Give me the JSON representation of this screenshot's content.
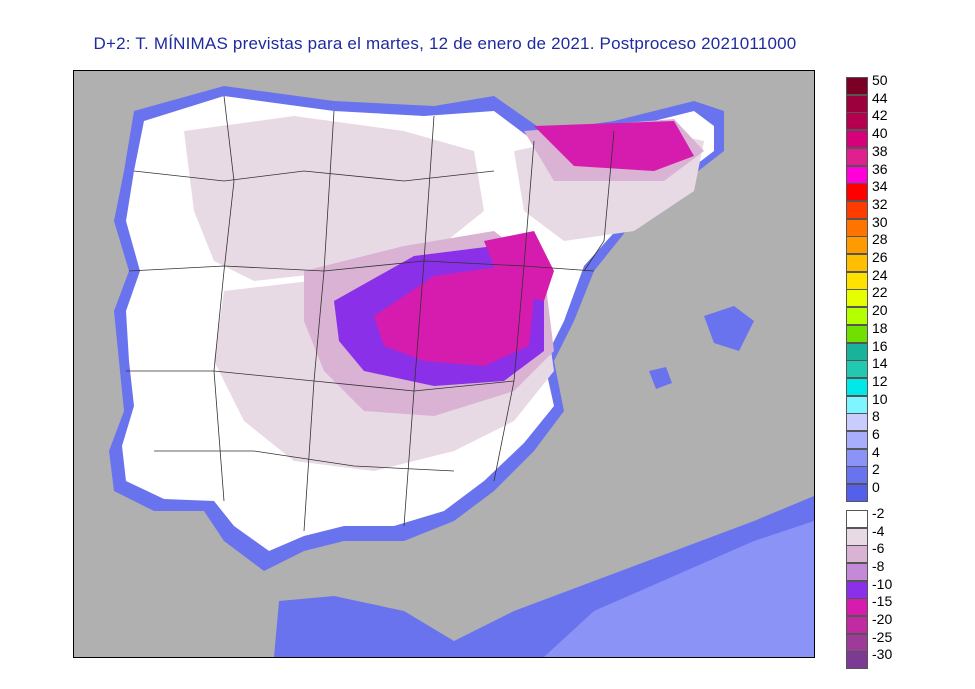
{
  "title": "D+2: T. MÍNIMAS previstas para el martes, 12 de enero de 2021. Postproceso 2021011000",
  "legend": {
    "upper": [
      {
        "label": "50",
        "color": "#7a0026"
      },
      {
        "label": "44",
        "color": "#9c003d"
      },
      {
        "label": "42",
        "color": "#b5004f"
      },
      {
        "label": "40",
        "color": "#d6007a"
      },
      {
        "label": "38",
        "color": "#e0208e"
      },
      {
        "label": "36",
        "color": "#ff00d8"
      },
      {
        "label": "34",
        "color": "#ff0000"
      },
      {
        "label": "32",
        "color": "#ff3c00"
      },
      {
        "label": "30",
        "color": "#ff7300"
      },
      {
        "label": "28",
        "color": "#ff9a00"
      },
      {
        "label": "26",
        "color": "#ffbf00"
      },
      {
        "label": "24",
        "color": "#ffe100"
      },
      {
        "label": "22",
        "color": "#e5ff00"
      },
      {
        "label": "20",
        "color": "#b4ff00"
      },
      {
        "label": "18",
        "color": "#6fe000"
      },
      {
        "label": "16",
        "color": "#19b39a"
      },
      {
        "label": "14",
        "color": "#20c9b0"
      },
      {
        "label": "12",
        "color": "#00e8e8"
      },
      {
        "label": "10",
        "color": "#7ff5ff"
      },
      {
        "label": "8",
        "color": "#c8ccff"
      },
      {
        "label": "6",
        "color": "#a8aefc"
      },
      {
        "label": "4",
        "color": "#8c93f7"
      },
      {
        "label": "2",
        "color": "#6a73ee"
      },
      {
        "label": "0",
        "color": "#5560ea"
      }
    ],
    "lower": [
      {
        "label": "-2",
        "color": "#ffffff"
      },
      {
        "label": "-4",
        "color": "#e8dae4"
      },
      {
        "label": "-6",
        "color": "#d9b2d4"
      },
      {
        "label": "-8",
        "color": "#c48ad8"
      },
      {
        "label": "-10",
        "color": "#8a30e8"
      },
      {
        "label": "-15",
        "color": "#d51cae"
      },
      {
        "label": "-20",
        "color": "#c22aa1"
      },
      {
        "label": "-25",
        "color": "#9e3b98"
      },
      {
        "label": "-30",
        "color": "#7b3b92"
      }
    ]
  }
}
